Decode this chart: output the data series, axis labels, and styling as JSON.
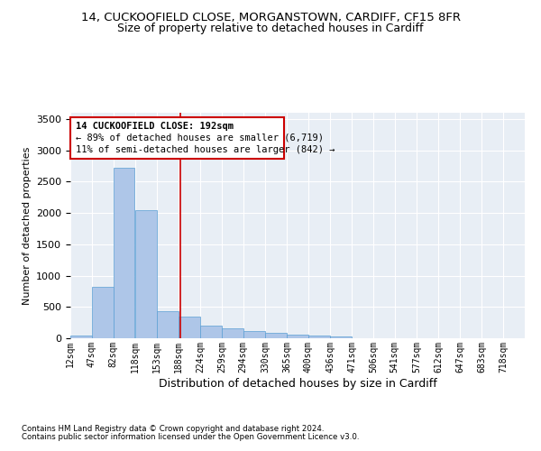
{
  "title_line1": "14, CUCKOOFIELD CLOSE, MORGANSTOWN, CARDIFF, CF15 8FR",
  "title_line2": "Size of property relative to detached houses in Cardiff",
  "xlabel": "Distribution of detached houses by size in Cardiff",
  "ylabel": "Number of detached properties",
  "annotation_line1": "14 CUCKOOFIELD CLOSE: 192sqm",
  "annotation_line2": "← 89% of detached houses are smaller (6,719)",
  "annotation_line3": "11% of semi-detached houses are larger (842) →",
  "property_size_sqm": 192,
  "footnote1": "Contains HM Land Registry data © Crown copyright and database right 2024.",
  "footnote2": "Contains public sector information licensed under the Open Government Licence v3.0.",
  "bin_labels": [
    "12sqm",
    "47sqm",
    "82sqm",
    "118sqm",
    "153sqm",
    "188sqm",
    "224sqm",
    "259sqm",
    "294sqm",
    "330sqm",
    "365sqm",
    "400sqm",
    "436sqm",
    "471sqm",
    "506sqm",
    "541sqm",
    "577sqm",
    "612sqm",
    "647sqm",
    "683sqm",
    "718sqm"
  ],
  "bin_edges": [
    12,
    47,
    82,
    118,
    153,
    188,
    224,
    259,
    294,
    330,
    365,
    400,
    436,
    471,
    506,
    541,
    577,
    612,
    647,
    683,
    718,
    753
  ],
  "bar_heights": [
    50,
    820,
    2720,
    2050,
    430,
    340,
    200,
    160,
    120,
    80,
    60,
    50,
    30,
    0,
    0,
    0,
    0,
    0,
    0,
    0,
    0
  ],
  "bar_color": "#aec6e8",
  "bar_edge_color": "#5a9fd4",
  "vline_x": 192,
  "vline_color": "#cc0000",
  "annotation_box_edge_color": "#cc0000",
  "ylim": [
    0,
    3600
  ],
  "yticks": [
    0,
    500,
    1000,
    1500,
    2000,
    2500,
    3000,
    3500
  ],
  "background_color": "#e8eef5",
  "fig_background": "#ffffff",
  "title_fontsize": 9.5,
  "subtitle_fontsize": 9
}
